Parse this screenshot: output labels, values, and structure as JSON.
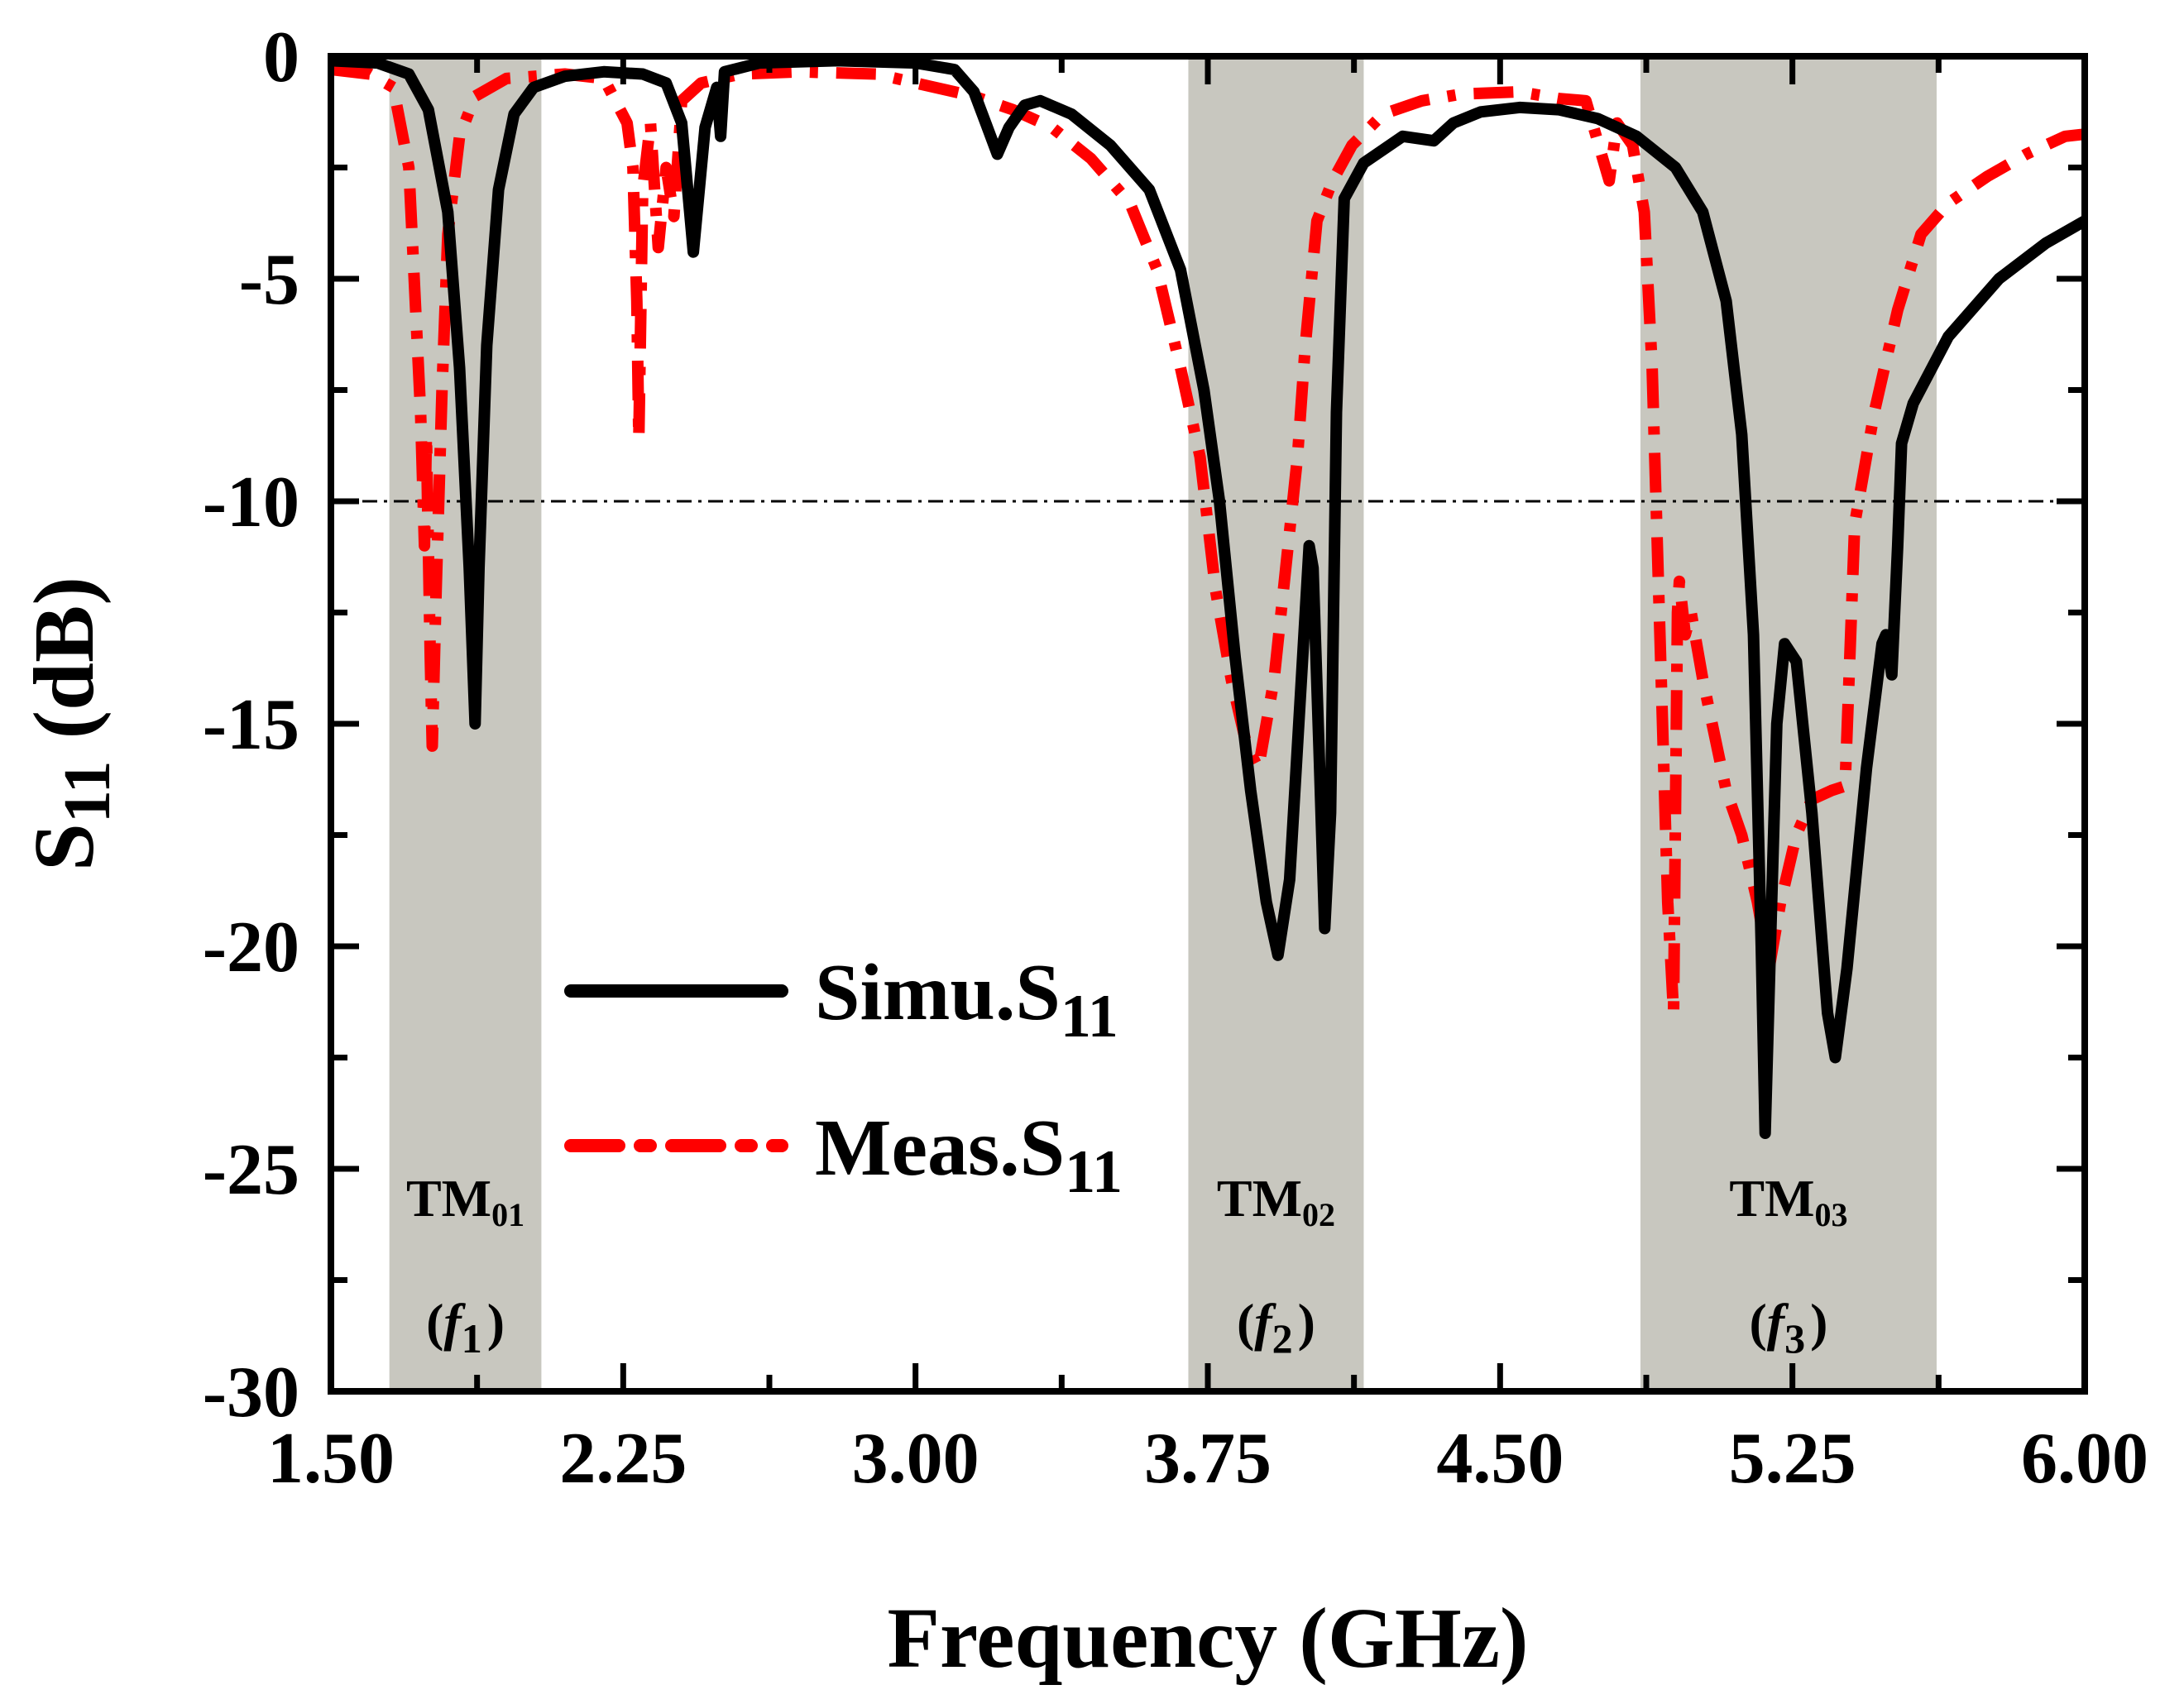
{
  "chart_data": {
    "type": "line",
    "xlabel": "Frequency (GHz)",
    "ylabel": {
      "main": "S",
      "sub": "11",
      "unit": " (dB)"
    },
    "xlim": [
      1.5,
      6.0
    ],
    "ylim": [
      -30,
      0
    ],
    "x_ticks": [
      1.5,
      2.25,
      3.0,
      3.75,
      4.5,
      5.25,
      6.0
    ],
    "x_tick_labels": [
      "1.50",
      "2.25",
      "3.00",
      "3.75",
      "4.50",
      "5.25",
      "6.00"
    ],
    "y_ticks": [
      0,
      -5,
      -10,
      -15,
      -20,
      -25,
      -30
    ],
    "y_tick_labels": [
      "0",
      "-5",
      "-10",
      "-15",
      "-20",
      "-25",
      "-30"
    ],
    "reference_line": {
      "y": -10,
      "style": "dash-dot"
    },
    "bands": [
      {
        "x0": 1.65,
        "x1": 2.04,
        "mode": "TM",
        "mode_sub": "01",
        "f_label": "f",
        "f_sub": "1"
      },
      {
        "x0": 3.7,
        "x1": 4.15,
        "mode": "TM",
        "mode_sub": "02",
        "f_label": "f",
        "f_sub": "2"
      },
      {
        "x0": 4.86,
        "x1": 5.62,
        "mode": "TM",
        "mode_sub": "03",
        "f_label": "f",
        "f_sub": "3"
      }
    ],
    "series": [
      {
        "name": "Simu.S",
        "name_sub": "11",
        "color": "#000000",
        "style": "solid",
        "points": [
          [
            1.5,
            -0.1
          ],
          [
            1.62,
            -0.15
          ],
          [
            1.7,
            -0.4
          ],
          [
            1.75,
            -1.2
          ],
          [
            1.8,
            -3.5
          ],
          [
            1.83,
            -7.0
          ],
          [
            1.855,
            -11.5
          ],
          [
            1.87,
            -15.0
          ],
          [
            1.88,
            -11.5
          ],
          [
            1.9,
            -6.5
          ],
          [
            1.93,
            -3.0
          ],
          [
            1.97,
            -1.3
          ],
          [
            2.02,
            -0.7
          ],
          [
            2.1,
            -0.45
          ],
          [
            2.2,
            -0.35
          ],
          [
            2.3,
            -0.4
          ],
          [
            2.36,
            -0.6
          ],
          [
            2.4,
            -1.5
          ],
          [
            2.43,
            -4.4
          ],
          [
            2.46,
            -1.6
          ],
          [
            2.49,
            -0.7
          ],
          [
            2.5,
            -1.8
          ],
          [
            2.51,
            -0.35
          ],
          [
            2.6,
            -0.15
          ],
          [
            2.8,
            -0.1
          ],
          [
            3.0,
            -0.15
          ],
          [
            3.1,
            -0.3
          ],
          [
            3.15,
            -0.8
          ],
          [
            3.18,
            -1.5
          ],
          [
            3.21,
            -2.2
          ],
          [
            3.24,
            -1.6
          ],
          [
            3.28,
            -1.1
          ],
          [
            3.32,
            -1.0
          ],
          [
            3.4,
            -1.3
          ],
          [
            3.5,
            -2.0
          ],
          [
            3.6,
            -3.0
          ],
          [
            3.68,
            -4.8
          ],
          [
            3.74,
            -7.5
          ],
          [
            3.78,
            -10.0
          ],
          [
            3.82,
            -13.5
          ],
          [
            3.86,
            -16.5
          ],
          [
            3.9,
            -19.0
          ],
          [
            3.93,
            -20.2
          ],
          [
            3.96,
            -18.5
          ],
          [
            3.99,
            -14.0
          ],
          [
            4.01,
            -11.0
          ],
          [
            4.02,
            -11.5
          ],
          [
            4.035,
            -15.5
          ],
          [
            4.05,
            -19.6
          ],
          [
            4.065,
            -17.0
          ],
          [
            4.08,
            -8.0
          ],
          [
            4.1,
            -3.2
          ],
          [
            4.15,
            -2.4
          ],
          [
            4.25,
            -1.8
          ],
          [
            4.33,
            -1.9
          ],
          [
            4.38,
            -1.5
          ],
          [
            4.45,
            -1.25
          ],
          [
            4.55,
            -1.15
          ],
          [
            4.65,
            -1.2
          ],
          [
            4.75,
            -1.4
          ],
          [
            4.85,
            -1.8
          ],
          [
            4.95,
            -2.5
          ],
          [
            5.02,
            -3.5
          ],
          [
            5.08,
            -5.5
          ],
          [
            5.12,
            -8.5
          ],
          [
            5.15,
            -13.0
          ],
          [
            5.17,
            -20.0
          ],
          [
            5.18,
            -24.2
          ],
          [
            5.195,
            -19.5
          ],
          [
            5.21,
            -15.0
          ],
          [
            5.23,
            -13.2
          ],
          [
            5.26,
            -13.6
          ],
          [
            5.3,
            -17.0
          ],
          [
            5.34,
            -21.5
          ],
          [
            5.36,
            -22.5
          ],
          [
            5.39,
            -20.5
          ],
          [
            5.44,
            -16.0
          ],
          [
            5.48,
            -13.2
          ],
          [
            5.49,
            -13.0
          ],
          [
            5.505,
            -13.9
          ],
          [
            5.52,
            -11.0
          ],
          [
            5.53,
            -8.7
          ],
          [
            5.56,
            -7.8
          ],
          [
            5.65,
            -6.3
          ],
          [
            5.78,
            -5.0
          ],
          [
            5.9,
            -4.2
          ],
          [
            6.0,
            -3.7
          ]
        ]
      },
      {
        "name": "Meas.S",
        "name_sub": "11",
        "color": "#ff0000",
        "style": "dash-dot",
        "points": [
          [
            1.5,
            -0.3
          ],
          [
            1.6,
            -0.4
          ],
          [
            1.66,
            -0.7
          ],
          [
            1.7,
            -2.5
          ],
          [
            1.73,
            -8.0
          ],
          [
            1.74,
            -11.0
          ],
          [
            1.745,
            -8.5
          ],
          [
            1.755,
            -13.5
          ],
          [
            1.76,
            -15.5
          ],
          [
            1.77,
            -12.0
          ],
          [
            1.785,
            -7.5
          ],
          [
            1.8,
            -4.0
          ],
          [
            1.83,
            -1.8
          ],
          [
            1.87,
            -0.9
          ],
          [
            1.95,
            -0.5
          ],
          [
            2.1,
            -0.4
          ],
          [
            2.2,
            -0.5
          ],
          [
            2.26,
            -1.5
          ],
          [
            2.275,
            -2.5
          ],
          [
            2.285,
            -5.5
          ],
          [
            2.29,
            -8.6
          ],
          [
            2.3,
            -3.0
          ],
          [
            2.32,
            -1.5
          ],
          [
            2.34,
            -4.3
          ],
          [
            2.36,
            -2.5
          ],
          [
            2.38,
            -3.6
          ],
          [
            2.4,
            -1.0
          ],
          [
            2.45,
            -0.6
          ],
          [
            2.55,
            -0.4
          ],
          [
            2.7,
            -0.35
          ],
          [
            2.9,
            -0.4
          ],
          [
            3.05,
            -0.7
          ],
          [
            3.15,
            -0.9
          ],
          [
            3.25,
            -1.2
          ],
          [
            3.35,
            -1.6
          ],
          [
            3.45,
            -2.3
          ],
          [
            3.55,
            -3.3
          ],
          [
            3.62,
            -4.8
          ],
          [
            3.68,
            -7.0
          ],
          [
            3.73,
            -9.0
          ],
          [
            3.77,
            -12.0
          ],
          [
            3.81,
            -14.0
          ],
          [
            3.85,
            -15.5
          ],
          [
            3.88,
            -16.0
          ],
          [
            3.92,
            -14.0
          ],
          [
            3.95,
            -11.5
          ],
          [
            3.98,
            -9.0
          ],
          [
            4.0,
            -6.5
          ],
          [
            4.03,
            -3.7
          ],
          [
            4.07,
            -2.8
          ],
          [
            4.12,
            -2.0
          ],
          [
            4.2,
            -1.3
          ],
          [
            4.3,
            -1.0
          ],
          [
            4.4,
            -0.85
          ],
          [
            4.55,
            -0.8
          ],
          [
            4.65,
            -0.95
          ],
          [
            4.72,
            -1.0
          ],
          [
            4.78,
            -2.8
          ],
          [
            4.8,
            -1.5
          ],
          [
            4.84,
            -2.0
          ],
          [
            4.87,
            -3.5
          ],
          [
            4.89,
            -7.0
          ],
          [
            4.91,
            -13.0
          ],
          [
            4.93,
            -19.0
          ],
          [
            4.945,
            -21.5
          ],
          [
            4.95,
            -17.0
          ],
          [
            4.955,
            -12.5
          ],
          [
            4.96,
            -11.8
          ],
          [
            4.975,
            -13.0
          ],
          [
            4.99,
            -12.5
          ],
          [
            5.02,
            -14.0
          ],
          [
            5.08,
            -16.5
          ],
          [
            5.12,
            -17.5
          ],
          [
            5.16,
            -19.0
          ],
          [
            5.19,
            -20.5
          ],
          [
            5.22,
            -19.0
          ],
          [
            5.26,
            -17.5
          ],
          [
            5.3,
            -16.7
          ],
          [
            5.35,
            -16.5
          ],
          [
            5.385,
            -16.4
          ],
          [
            5.41,
            -10.5
          ],
          [
            5.46,
            -8.0
          ],
          [
            5.52,
            -5.7
          ],
          [
            5.58,
            -4.0
          ],
          [
            5.65,
            -3.3
          ],
          [
            5.75,
            -2.7
          ],
          [
            5.85,
            -2.2
          ],
          [
            5.95,
            -1.8
          ],
          [
            6.0,
            -1.75
          ]
        ]
      }
    ]
  }
}
